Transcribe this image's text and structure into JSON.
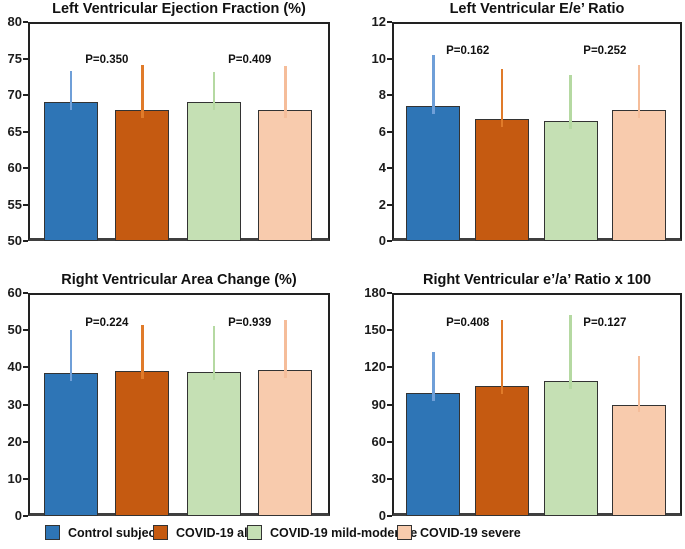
{
  "figure": {
    "background": "#ffffff"
  },
  "chart_data": [
    {
      "type": "bar",
      "title": "Left Ventricular Ejection Fraction (%)",
      "xlabel": "",
      "ylabel": "",
      "ylim": [
        50,
        80
      ],
      "yticks": [
        80,
        75,
        70,
        65,
        60,
        55,
        50
      ],
      "grid": false,
      "categories": [
        "Control subjects",
        "COVID-19 all",
        "COVID-19 mild-moderate",
        "COVID-19 severe"
      ],
      "values": [
        69,
        68,
        69,
        68
      ],
      "error_top": [
        73.3,
        74.1,
        73.2,
        74.0
      ],
      "p_values": [
        {
          "label": "P=0.350",
          "between": [
            0,
            1
          ],
          "y": 74.5
        },
        {
          "label": "P=0.409",
          "between": [
            2,
            3
          ],
          "y": 74.5
        }
      ]
    },
    {
      "type": "bar",
      "title": "Left Ventricular E/e’ Ratio",
      "xlabel": "",
      "ylabel": "",
      "ylim": [
        0,
        12
      ],
      "yticks": [
        12,
        10,
        8,
        6,
        4,
        2,
        0
      ],
      "grid": false,
      "categories": [
        "Control subjects",
        "COVID-19 all",
        "COVID-19 mild-moderate",
        "COVID-19 severe"
      ],
      "values": [
        7.4,
        6.7,
        6.6,
        7.2
      ],
      "error_top": [
        10.2,
        9.4,
        9.1,
        9.65
      ],
      "p_values": [
        {
          "label": "P=0.162",
          "between": [
            0,
            1
          ],
          "y": 10.3
        },
        {
          "label": "P=0.252",
          "between": [
            2,
            3
          ],
          "y": 10.3
        }
      ]
    },
    {
      "type": "bar",
      "title": "Right Ventricular Area Change (%)",
      "xlabel": "",
      "ylabel": "",
      "ylim": [
        0,
        60
      ],
      "yticks": [
        60,
        50,
        40,
        30,
        20,
        10,
        0
      ],
      "grid": false,
      "categories": [
        "Control subjects",
        "COVID-19 all",
        "COVID-19 mild-moderate",
        "COVID-19 severe"
      ],
      "values": [
        38.5,
        39,
        38.8,
        39.2
      ],
      "error_top": [
        50,
        51.3,
        51,
        52.8
      ],
      "p_values": [
        {
          "label": "P=0.224",
          "between": [
            0,
            1
          ],
          "y": 51.5
        },
        {
          "label": "P=0.939",
          "between": [
            2,
            3
          ],
          "y": 51.5
        }
      ]
    },
    {
      "type": "bar",
      "title": "Right Ventricular e’/a’ Ratio x 100",
      "xlabel": "",
      "ylabel": "",
      "ylim": [
        0,
        180
      ],
      "yticks": [
        180,
        150,
        120,
        90,
        60,
        30,
        0
      ],
      "grid": false,
      "categories": [
        "Control subjects",
        "COVID-19 all",
        "COVID-19 mild-moderate",
        "COVID-19 severe"
      ],
      "values": [
        99,
        105,
        109,
        90
      ],
      "error_top": [
        132,
        158,
        162,
        129
      ],
      "p_values": [
        {
          "label": "P=0.408",
          "between": [
            0,
            1
          ],
          "y": 154
        },
        {
          "label": "P=0.127",
          "between": [
            2,
            3
          ],
          "y": 154
        }
      ]
    }
  ],
  "legend": {
    "items": [
      {
        "label": "Control subjects",
        "color": "#2E75B6"
      },
      {
        "label": "COVID-19 all",
        "color": "#C55A11"
      },
      {
        "label": "COVID-19 mild-moderate",
        "color": "#C5E0B4"
      },
      {
        "label": "COVID-19 severe",
        "color": "#F8CBAD"
      }
    ]
  },
  "colors": {
    "bar_fills": [
      "#2E75B6",
      "#C55A11",
      "#C5E0B4",
      "#F8CBAD"
    ],
    "error_bars": [
      "#6F9FD8",
      "#E07B2A",
      "#B5D9A2",
      "#F5BD9A"
    ],
    "bar_border": "#333333",
    "axis": "#222222",
    "text": "#111111"
  }
}
